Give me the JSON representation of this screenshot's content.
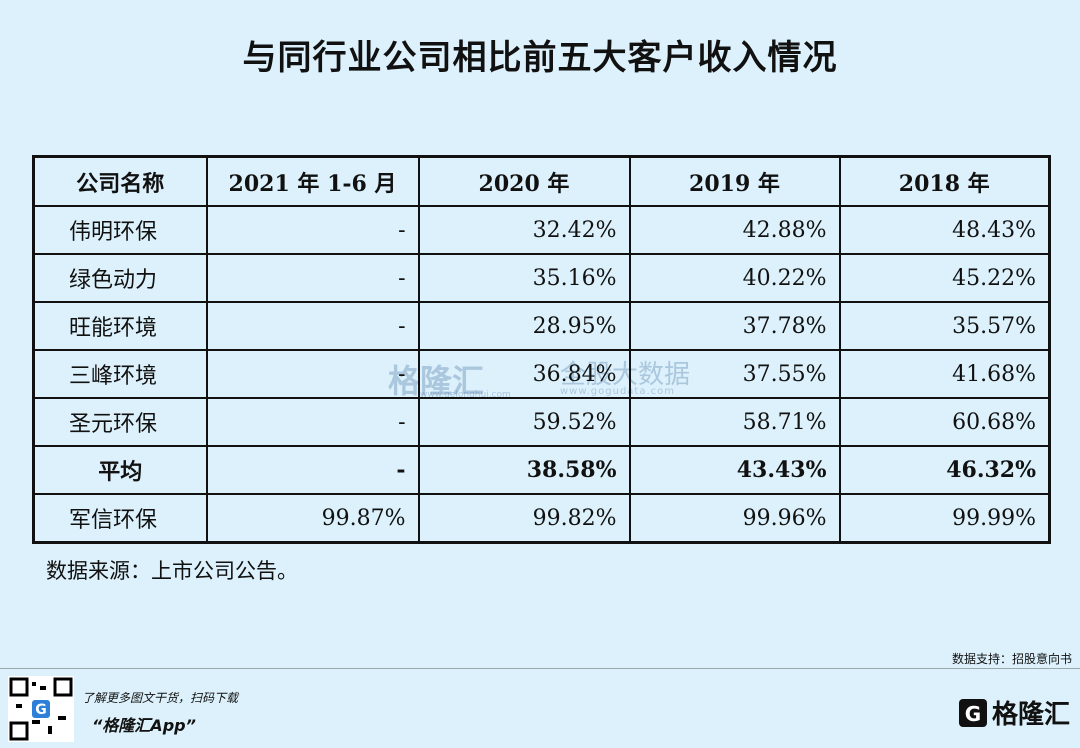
{
  "title": "与同行业公司相比前五大客户收入情况",
  "table": {
    "header": [
      "公司名称",
      "2021 年 1-6 月",
      "2020 年",
      "2019 年",
      "2018 年"
    ],
    "rows": [
      [
        "伟明环保",
        "-",
        "32.42%",
        "42.88%",
        "48.43%"
      ],
      [
        "绿色动力",
        "-",
        "35.16%",
        "40.22%",
        "45.22%"
      ],
      [
        "旺能环境",
        "-",
        "28.95%",
        "37.78%",
        "35.57%"
      ],
      [
        "三峰环境",
        "-",
        "36.84%",
        "37.55%",
        "41.68%"
      ],
      [
        "圣元环保",
        "-",
        "59.52%",
        "58.71%",
        "60.68%"
      ],
      [
        "平均",
        "-",
        "38.58%",
        "43.43%",
        "46.32%"
      ],
      [
        "军信环保",
        "99.87%",
        "99.82%",
        "99.96%",
        "99.99%"
      ]
    ]
  },
  "source": "数据来源：上市公司公告。",
  "watermark": {
    "brand": "格隆汇",
    "slogan": "全股大数据",
    "url1": "www.gelonghui.com",
    "url2": "www.gogudata.com"
  },
  "footer": {
    "support": "数据支持：招股意向书",
    "promo": "了解更多图文干货，扫码下载",
    "app": "“格隆汇App”",
    "logo": "格隆汇"
  }
}
